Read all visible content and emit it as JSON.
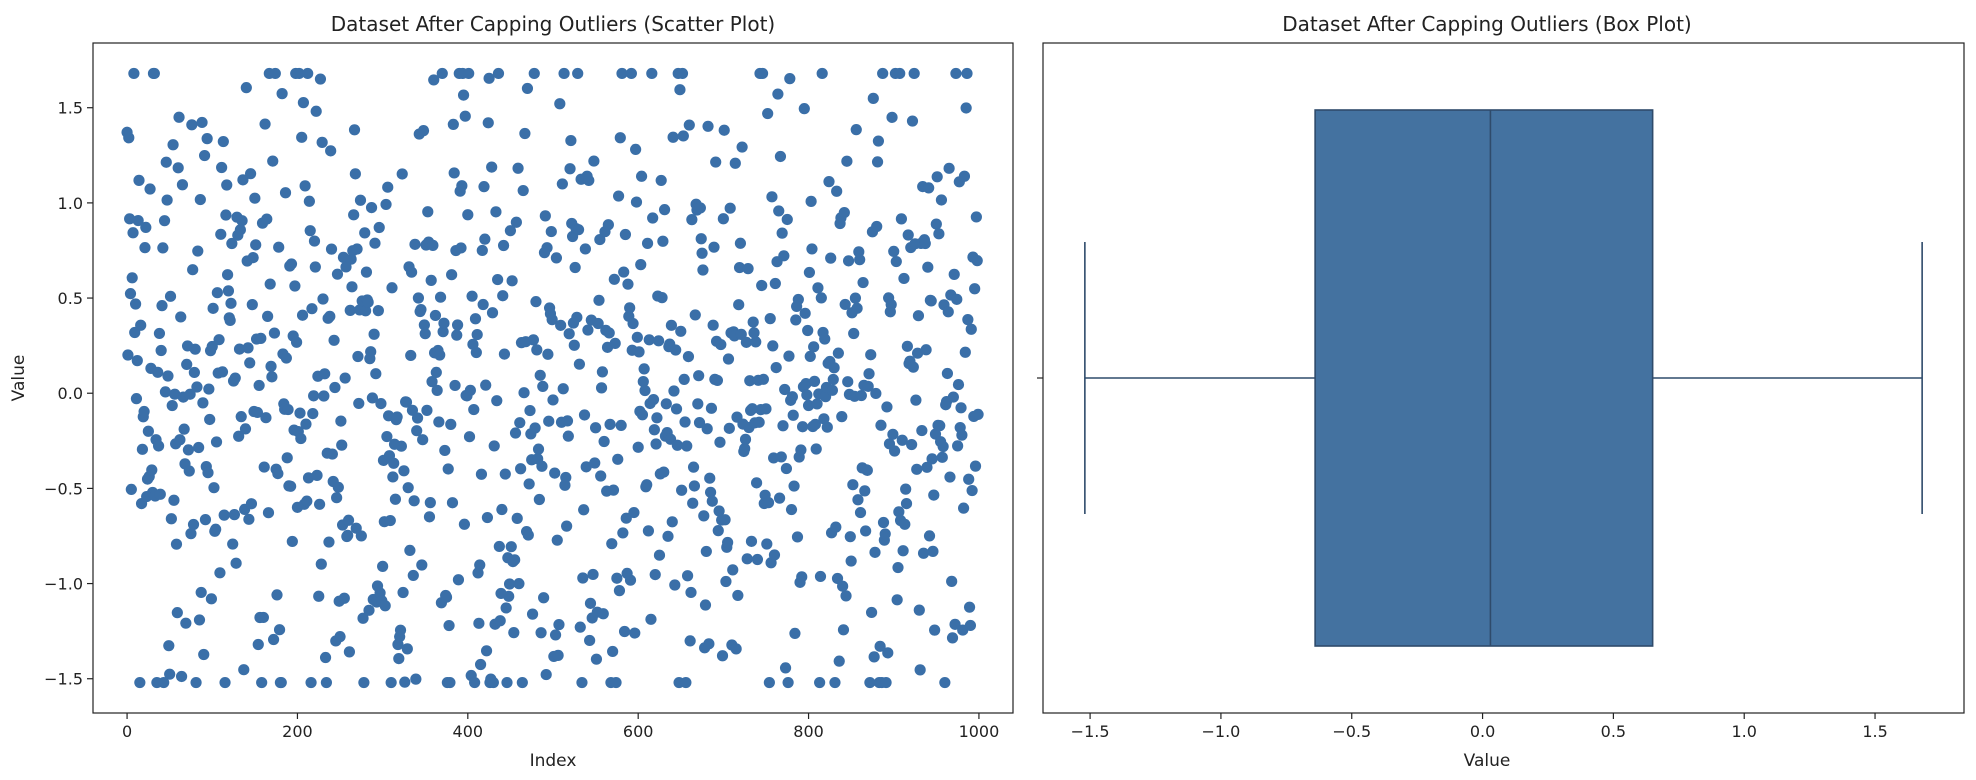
{
  "chart_data": [
    {
      "type": "scatter",
      "title": "Dataset After Capping Outliers (Scatter Plot)",
      "xlabel": "Index",
      "ylabel": "Value",
      "xlim": [
        -40,
        1040
      ],
      "ylim": [
        -1.68,
        1.84
      ],
      "xticks": [
        0,
        200,
        400,
        600,
        800,
        1000
      ],
      "yticks": [
        -1.5,
        -1.0,
        -0.5,
        0.0,
        0.5,
        1.0,
        1.5
      ],
      "lower_cap": -1.52,
      "upper_cap": 1.68,
      "n_points": 1000,
      "color": "#3a6fa8"
    },
    {
      "type": "box",
      "title": "Dataset After Capping Outliers (Box Plot)",
      "xlabel": "Value",
      "xlim": [
        -1.68,
        1.84
      ],
      "xticks": [
        -1.5,
        -1.0,
        -0.5,
        0.0,
        0.5,
        1.0,
        1.5
      ],
      "min": -1.52,
      "q1": -0.64,
      "median": 0.03,
      "q3": 0.65,
      "max": 1.68,
      "color": "#4472a0",
      "edge_color": "#2f4b6b"
    }
  ]
}
